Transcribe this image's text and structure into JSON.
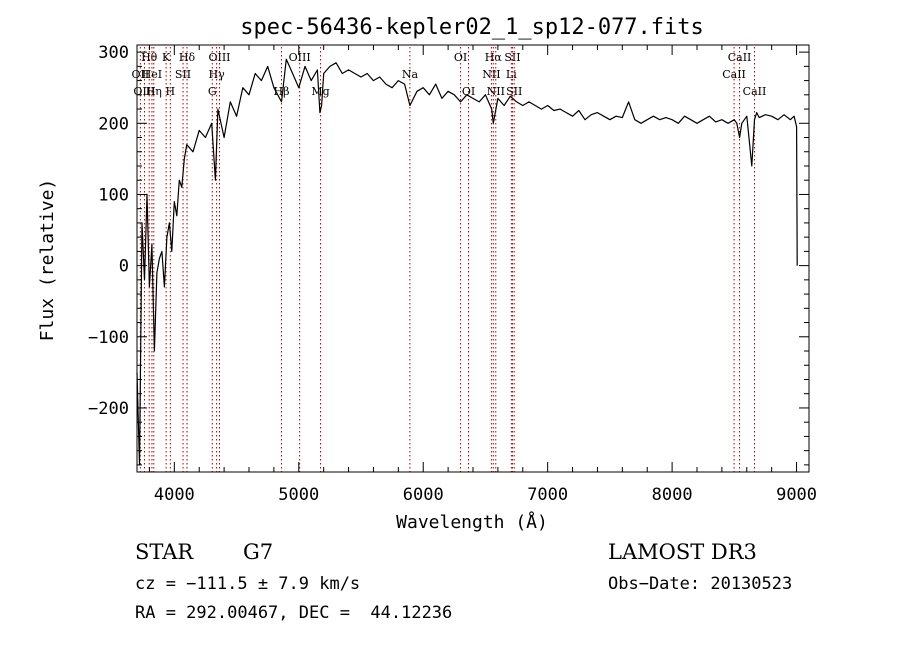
{
  "chart_data": {
    "type": "line",
    "title": "spec-56436-kepler02_1_sp12-077.fits",
    "xlabel": "Wavelength (Å)",
    "ylabel": "Flux (relative)",
    "xlim": [
      3700,
      9100
    ],
    "ylim": [
      -290,
      310
    ],
    "xticks": [
      4000,
      5000,
      6000,
      7000,
      8000,
      9000
    ],
    "xtick_labels": [
      "4000",
      "5000",
      "6000",
      "7000",
      "8000",
      "9000"
    ],
    "yticks": [
      -200,
      -100,
      0,
      100,
      200,
      300
    ],
    "ytick_labels": [
      "−200",
      "−100",
      "0",
      "100",
      "200",
      "300"
    ],
    "grid": false,
    "line_color": "#000000",
    "marker_color": "#b00000",
    "spectrum": {
      "name": "Flux",
      "x": [
        3700,
        3720,
        3740,
        3760,
        3780,
        3800,
        3820,
        3840,
        3860,
        3880,
        3900,
        3920,
        3940,
        3960,
        3980,
        4000,
        4020,
        4040,
        4060,
        4080,
        4100,
        4150,
        4200,
        4250,
        4300,
        4330,
        4350,
        4400,
        4450,
        4500,
        4550,
        4600,
        4650,
        4700,
        4750,
        4800,
        4861,
        4900,
        4950,
        5000,
        5050,
        5100,
        5150,
        5170,
        5183,
        5200,
        5250,
        5300,
        5350,
        5400,
        5450,
        5500,
        5550,
        5600,
        5650,
        5700,
        5750,
        5800,
        5850,
        5893,
        5950,
        6000,
        6050,
        6100,
        6150,
        6200,
        6250,
        6300,
        6350,
        6400,
        6450,
        6500,
        6550,
        6563,
        6600,
        6650,
        6700,
        6750,
        6800,
        6850,
        6900,
        6950,
        7000,
        7050,
        7100,
        7150,
        7200,
        7250,
        7300,
        7350,
        7400,
        7450,
        7500,
        7550,
        7600,
        7650,
        7700,
        7750,
        7800,
        7850,
        7900,
        7950,
        8000,
        8050,
        8100,
        8150,
        8200,
        8250,
        8300,
        8350,
        8400,
        8450,
        8500,
        8520,
        8542,
        8560,
        8600,
        8640,
        8662,
        8680,
        8700,
        8750,
        8800,
        8850,
        8900,
        8950,
        8980,
        9000,
        9005
      ],
      "y": [
        -150,
        -280,
        60,
        -20,
        100,
        -30,
        30,
        -120,
        -10,
        10,
        20,
        -30,
        40,
        60,
        20,
        90,
        70,
        120,
        110,
        150,
        170,
        160,
        190,
        180,
        200,
        120,
        220,
        180,
        230,
        210,
        250,
        240,
        270,
        260,
        280,
        250,
        230,
        290,
        270,
        250,
        280,
        260,
        275,
        215,
        225,
        270,
        280,
        285,
        270,
        275,
        270,
        265,
        270,
        260,
        265,
        255,
        250,
        260,
        255,
        225,
        245,
        250,
        240,
        255,
        235,
        245,
        240,
        230,
        240,
        235,
        230,
        240,
        220,
        200,
        235,
        225,
        238,
        230,
        225,
        230,
        225,
        220,
        225,
        218,
        220,
        215,
        210,
        218,
        205,
        212,
        215,
        210,
        205,
        210,
        208,
        230,
        205,
        200,
        205,
        210,
        205,
        208,
        205,
        200,
        210,
        205,
        200,
        205,
        210,
        202,
        205,
        200,
        205,
        200,
        180,
        200,
        210,
        140,
        205,
        215,
        208,
        212,
        210,
        205,
        212,
        205,
        210,
        195,
        0
      ]
    },
    "line_markers": [
      {
        "label": "Hθ",
        "x": 3798,
        "row": 1
      },
      {
        "label": "OII",
        "x": 3727,
        "row": 2
      },
      {
        "label": "OIII",
        "x": 3760,
        "row": 3
      },
      {
        "label": "HeI",
        "x": 3820,
        "row": 2
      },
      {
        "label": "Hη",
        "x": 3835,
        "row": 3
      },
      {
        "label": "K",
        "x": 3934,
        "row": 1
      },
      {
        "label": "H",
        "x": 3968,
        "row": 3
      },
      {
        "label": "SII",
        "x": 4070,
        "row": 2
      },
      {
        "label": "Hδ",
        "x": 4102,
        "row": 1
      },
      {
        "label": "OIII",
        "x": 4363,
        "row": 1
      },
      {
        "label": "Hγ",
        "x": 4340,
        "row": 2
      },
      {
        "label": "G",
        "x": 4305,
        "row": 3
      },
      {
        "label": "Hβ",
        "x": 4861,
        "row": 3
      },
      {
        "label": "OIII",
        "x": 5007,
        "row": 1
      },
      {
        "label": "Mg",
        "x": 5175,
        "row": 3
      },
      {
        "label": "Na",
        "x": 5893,
        "row": 2
      },
      {
        "label": "OI",
        "x": 6300,
        "row": 1
      },
      {
        "label": "OI",
        "x": 6364,
        "row": 3
      },
      {
        "label": "Hα",
        "x": 6563,
        "row": 1
      },
      {
        "label": "NII",
        "x": 6548,
        "row": 2
      },
      {
        "label": "NII",
        "x": 6583,
        "row": 3
      },
      {
        "label": "SII",
        "x": 6717,
        "row": 1
      },
      {
        "label": "Li",
        "x": 6708,
        "row": 2
      },
      {
        "label": "SII",
        "x": 6731,
        "row": 3
      },
      {
        "label": "CaII",
        "x": 8542,
        "row": 1
      },
      {
        "label": "CaII",
        "x": 8498,
        "row": 2
      },
      {
        "label": "CaII",
        "x": 8662,
        "row": 3
      }
    ]
  },
  "info": {
    "class": "STAR",
    "subclass": "G7",
    "survey": "LAMOST DR3",
    "cz": "cz = −111.5 ± 7.9 km/s",
    "obs_date": "Obs−Date: 20130523",
    "coords": "RA = 292.00467, DEC =  44.12236"
  }
}
